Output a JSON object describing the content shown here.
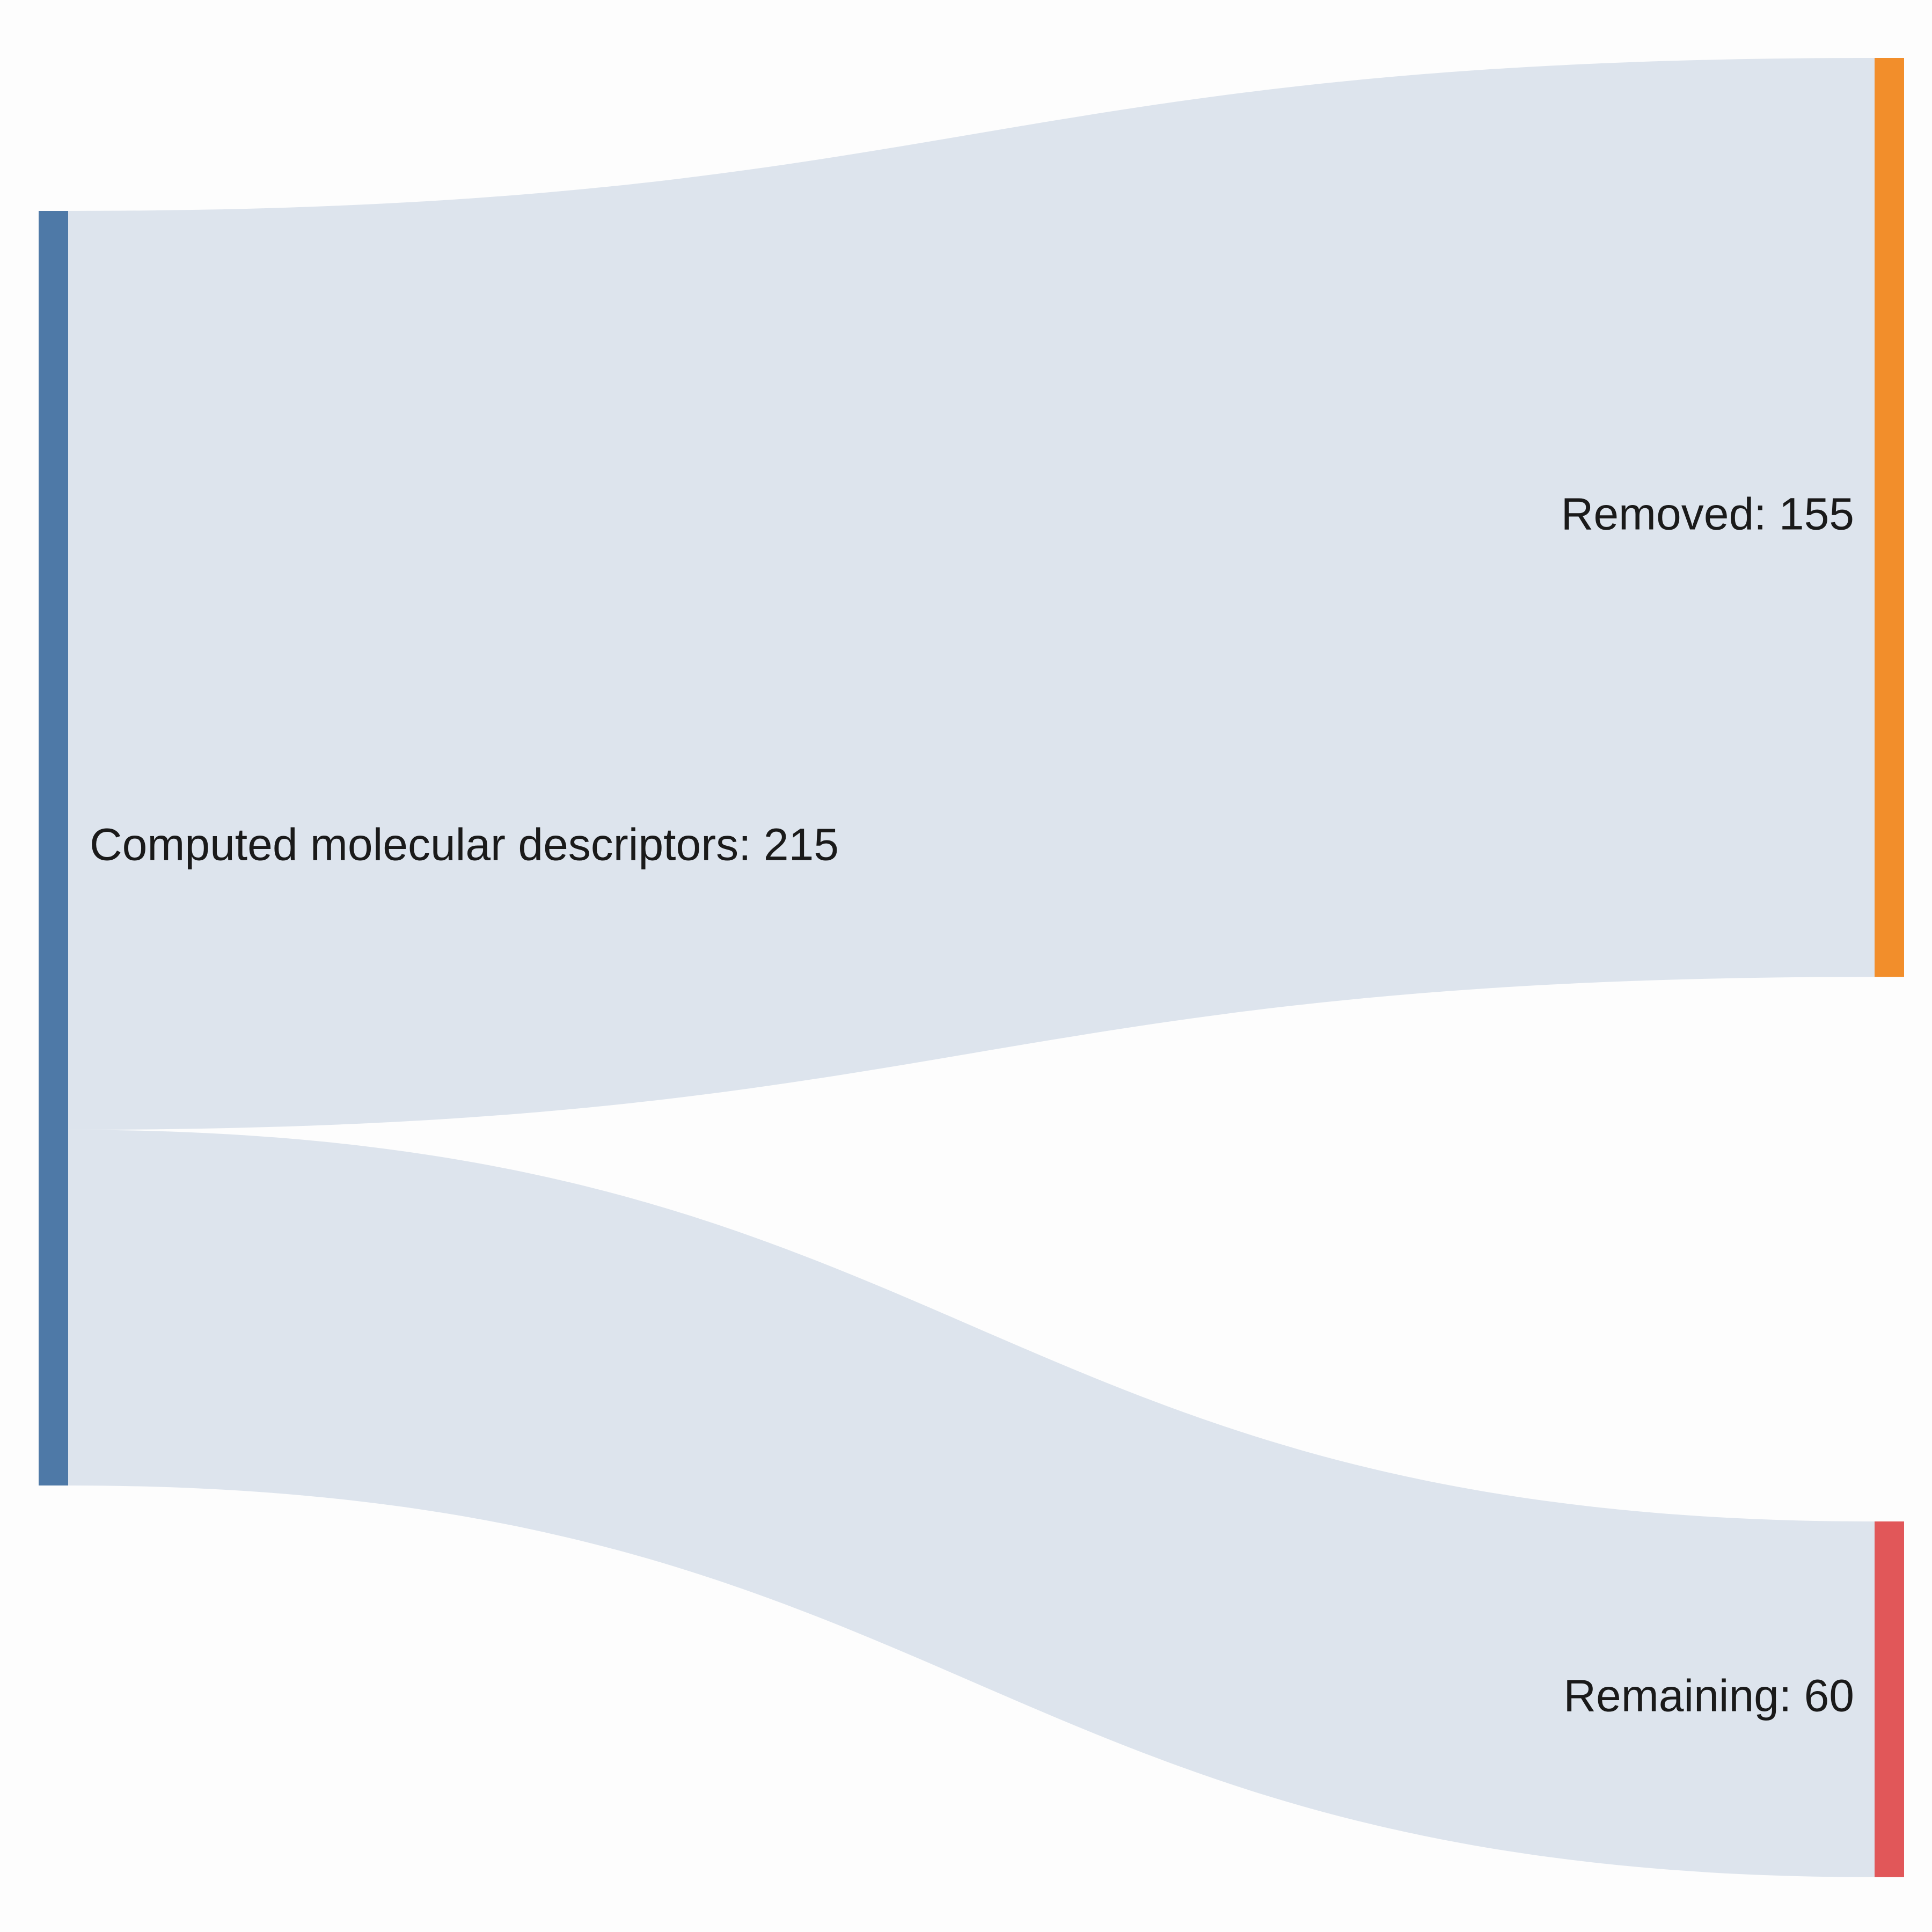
{
  "diagram": {
    "type": "sankey",
    "colors": {
      "background": "#fdfdfd",
      "link": "#dde4ed",
      "text": "#1a1a1a"
    },
    "nodes": [
      {
        "id": "computed",
        "label": "Computed molecular descriptors: 215",
        "value": 215,
        "color": "#4e79a7",
        "column": "left"
      },
      {
        "id": "removed",
        "label": "Removed: 155",
        "value": 155,
        "color": "#f28e2b",
        "column": "right"
      },
      {
        "id": "remaining",
        "label": "Remaining: 60",
        "value": 60,
        "color": "#e15759",
        "column": "right"
      }
    ],
    "links": [
      {
        "source": "computed",
        "target": "removed",
        "value": 155
      },
      {
        "source": "computed",
        "target": "remaining",
        "value": 60
      }
    ]
  }
}
